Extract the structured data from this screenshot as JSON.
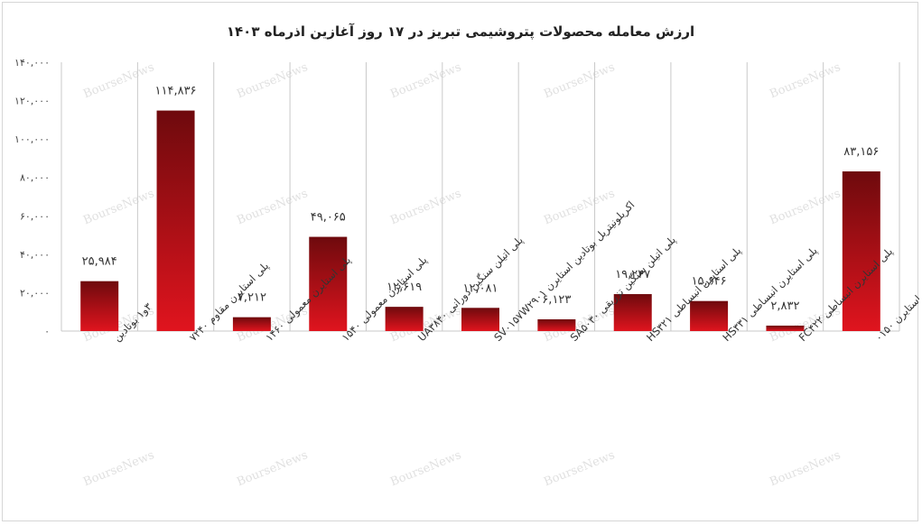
{
  "chart_data": {
    "type": "bar",
    "title": "ارزش معامله محصولات پتروشیمی تبریز در ۱۷ روز آغازین اذرماه ۱۴۰۳",
    "categories": [
      "۳و۱ بوتادین",
      "پلی استایرن مقاوم ۷۲۴۰",
      "پلی استایرن معمولی ۱۴۶۰",
      "پلی استایرن معمولی ۱۵۴۰",
      "پلی اتیلن سنگین دورانی UA۳۸۴۰",
      "اکریلونیتریل بوتادین استایرن SV۰۱۵۷W۲۹۰۱",
      "پلی اتیلن سنگین تزریقی SA۵۰۳۰",
      "پلی استایرن انبساطی HS۳۲۱",
      "پلی استایرن انبساطی HS۳۳۱",
      "پلی استایرن انبساطی FC۴۲۲",
      "اکریلونیتریل بوتادین استایرن ۰۱۵۰"
    ],
    "values": [
      25984,
      114836,
      7212,
      49065,
      12619,
      12081,
      6123,
      19247,
      15646,
      2832,
      83156
    ],
    "data_labels": [
      "۲۵,۹۸۴",
      "۱۱۴,۸۳۶",
      "۷,۲۱۲",
      "۴۹,۰۶۵",
      "۱۲,۶۱۹",
      "۱۲,۰۸۱",
      "۶,۱۲۳",
      "۱۹,۲۴۷",
      "۱۵,۶۴۶",
      "۲,۸۳۲",
      "۸۳,۱۵۶"
    ],
    "y_ticks": [
      0,
      20000,
      40000,
      60000,
      80000,
      100000,
      120000,
      140000
    ],
    "y_tick_labels": [
      "۰",
      "۲۰,۰۰۰",
      "۴۰,۰۰۰",
      "۶۰,۰۰۰",
      "۸۰,۰۰۰",
      "۱۰۰,۰۰۰",
      "۱۲۰,۰۰۰",
      "۱۴۰,۰۰۰"
    ],
    "ylim": [
      0,
      140000
    ],
    "xlabel": "",
    "ylabel": "",
    "grid": "vertical category separators",
    "colors": {
      "bar_top": "#6e0a0d",
      "bar_bottom": "#e0141e"
    }
  },
  "watermark": "BourseNews"
}
